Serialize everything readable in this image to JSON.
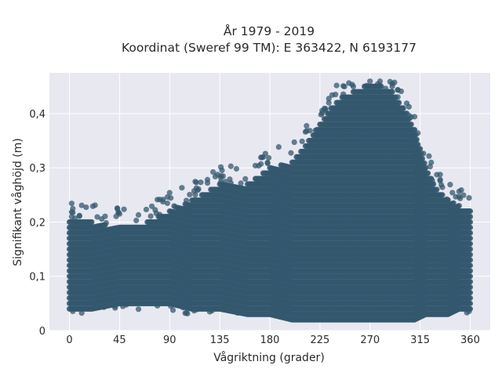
{
  "chart_data": {
    "type": "scatter",
    "title_line1": "År 1979 - 2019",
    "title_line2": "Koordinat (Sweref 99 TM): E 363422, N 6193177",
    "xlabel": "Vågriktning (grader)",
    "ylabel": "Signifikant våghöjd (m)",
    "xlim": [
      -18,
      378
    ],
    "ylim": [
      0,
      0.475
    ],
    "xticks": [
      0,
      45,
      90,
      135,
      180,
      225,
      270,
      315,
      360
    ],
    "xtick_labels": [
      "0",
      "45",
      "90",
      "135",
      "180",
      "225",
      "270",
      "315",
      "360"
    ],
    "yticks": [
      0,
      0.1,
      0.2,
      0.3,
      0.4
    ],
    "ytick_labels": [
      "0",
      "0,1",
      "0,2",
      "0,3",
      "0,4"
    ],
    "grid": true,
    "marker_color": "#34586e",
    "background_color": "#e8e8f1",
    "envelope": {
      "x": [
        0,
        20,
        45,
        70,
        90,
        110,
        135,
        160,
        180,
        200,
        215,
        225,
        235,
        245,
        255,
        265,
        270,
        280,
        290,
        300,
        310,
        320,
        330,
        340,
        350,
        360
      ],
      "lower": [
        0.04,
        0.04,
        0.05,
        0.05,
        0.05,
        0.04,
        0.04,
        0.03,
        0.03,
        0.02,
        0.02,
        0.02,
        0.02,
        0.02,
        0.02,
        0.02,
        0.02,
        0.02,
        0.02,
        0.02,
        0.02,
        0.03,
        0.03,
        0.03,
        0.04,
        0.04
      ],
      "upper": [
        0.2,
        0.2,
        0.19,
        0.2,
        0.22,
        0.24,
        0.27,
        0.27,
        0.3,
        0.31,
        0.35,
        0.38,
        0.41,
        0.43,
        0.44,
        0.45,
        0.45,
        0.45,
        0.44,
        0.41,
        0.37,
        0.3,
        0.26,
        0.24,
        0.23,
        0.22
      ]
    }
  }
}
